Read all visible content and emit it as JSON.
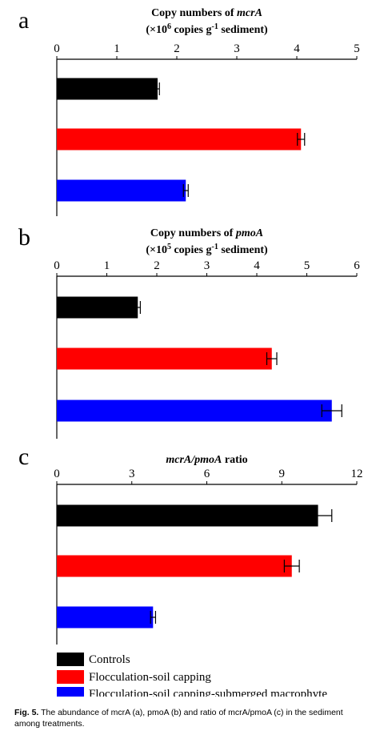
{
  "colors": {
    "Controls": "#000000",
    "Flocculation-soil capping": "#ff0000",
    "Flocculation-soil capping-submerged macrophyte": "#0000ff"
  },
  "chart_data": [
    {
      "type": "bar",
      "orientation": "horizontal",
      "panel": "a",
      "title_line1": "Copy numbers of ",
      "title_gene": "mcrA",
      "title_line2_pre": "(×10",
      "title_line2_sup": "6",
      "title_line2_mid": " copies g",
      "title_line2_sup2": "-1",
      "title_line2_post": " sediment)",
      "axis_position": "top",
      "xlim": [
        0,
        5
      ],
      "ticks": [
        0,
        1,
        2,
        3,
        4,
        5
      ],
      "tick_labels": [
        "0",
        "1",
        "2",
        "3",
        "4",
        "5"
      ],
      "categories": [
        "Controls",
        "Flocculation-soil capping",
        "Flocculation-soil capping-submerged macrophyte"
      ],
      "values": [
        1.68,
        4.07,
        2.15
      ],
      "errors": [
        0.03,
        0.06,
        0.04
      ]
    },
    {
      "type": "bar",
      "orientation": "horizontal",
      "panel": "b",
      "title_line1": "Copy numbers of ",
      "title_gene": "pmoA",
      "title_line2_pre": "(×10",
      "title_line2_sup": "5",
      "title_line2_mid": " copies g",
      "title_line2_sup2": "-1",
      "title_line2_post": " sediment)",
      "axis_position": "top",
      "xlim": [
        0,
        6
      ],
      "ticks": [
        0,
        1,
        2,
        3,
        4,
        5,
        6
      ],
      "tick_labels": [
        "0",
        "1",
        "2",
        "3",
        "4",
        "5",
        "6"
      ],
      "categories": [
        "Controls",
        "Flocculation-soil capping",
        "Flocculation-soil capping-submerged macrophyte"
      ],
      "values": [
        1.62,
        4.3,
        5.5
      ],
      "errors": [
        0.05,
        0.1,
        0.2
      ]
    },
    {
      "type": "bar",
      "orientation": "horizontal",
      "panel": "c",
      "title_gene": "mcrA/pmoA",
      "title_suffix": " ratio",
      "axis_position": "top",
      "xlim": [
        0,
        12
      ],
      "ticks": [
        0,
        3,
        6,
        9,
        12
      ],
      "tick_labels": [
        "0",
        "3",
        "6",
        "9",
        "12"
      ],
      "categories": [
        "Controls",
        "Flocculation-soil capping",
        "Flocculation-soil capping-submerged macrophyte"
      ],
      "values": [
        10.45,
        9.4,
        3.85
      ],
      "errors": [
        0.55,
        0.3,
        0.1
      ]
    }
  ],
  "legend": {
    "position": "bottom-left",
    "items": [
      "Controls",
      "Flocculation-soil capping",
      "Flocculation-soil capping-submerged macrophyte"
    ]
  },
  "caption": {
    "fig_label": "Fig. 5.",
    "text": " The abundance of mcrA (a), pmoA (b) and ratio of mcrA/pmoA (c) in the sediment among treatments."
  }
}
